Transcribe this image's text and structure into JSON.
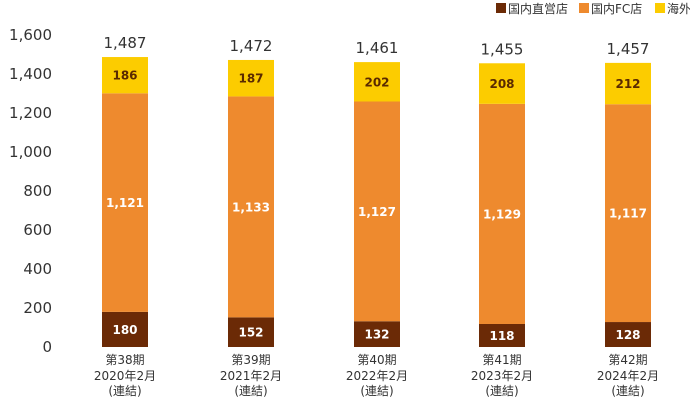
{
  "chart_data": {
    "type": "bar",
    "stacked": true,
    "categories": [
      [
        "第38期",
        "2020年2月",
        "(連結)"
      ],
      [
        "第39期",
        "2021年2月",
        "(連結)"
      ],
      [
        "第40期",
        "2022年2月",
        "(連結)"
      ],
      [
        "第41期",
        "2023年2月",
        "(連結)"
      ],
      [
        "第42期",
        "2024年2月",
        "(連結)"
      ]
    ],
    "series": [
      {
        "name": "国内直営店",
        "color": "#6b2a06",
        "label_color": "#ffffff",
        "values": [
          180,
          152,
          132,
          118,
          128
        ],
        "labels": [
          "180",
          "152",
          "132",
          "118",
          "128"
        ]
      },
      {
        "name": "国内FC店",
        "color": "#ee8a2e",
        "label_color": "#ffffff",
        "values": [
          1121,
          1133,
          1127,
          1129,
          1117
        ],
        "labels": [
          "1,121",
          "1,133",
          "1,127",
          "1,129",
          "1,117"
        ]
      },
      {
        "name": "海外",
        "color": "#fccc00",
        "label_color": "#5a2a00",
        "values": [
          186,
          187,
          202,
          208,
          212
        ],
        "labels": [
          "186",
          "187",
          "202",
          "208",
          "212"
        ]
      }
    ],
    "totals": [
      "1,487",
      "1,472",
      "1,461",
      "1,455",
      "1,457"
    ],
    "ylim": [
      0,
      1600
    ],
    "yticks": [
      0,
      200,
      400,
      600,
      800,
      1000,
      1200,
      1400,
      1600
    ],
    "ytick_labels": [
      "0",
      "200",
      "400",
      "600",
      "800",
      "1,000",
      "1,200",
      "1,400",
      "1,600"
    ],
    "grid": false,
    "legend_position": "top-right"
  }
}
